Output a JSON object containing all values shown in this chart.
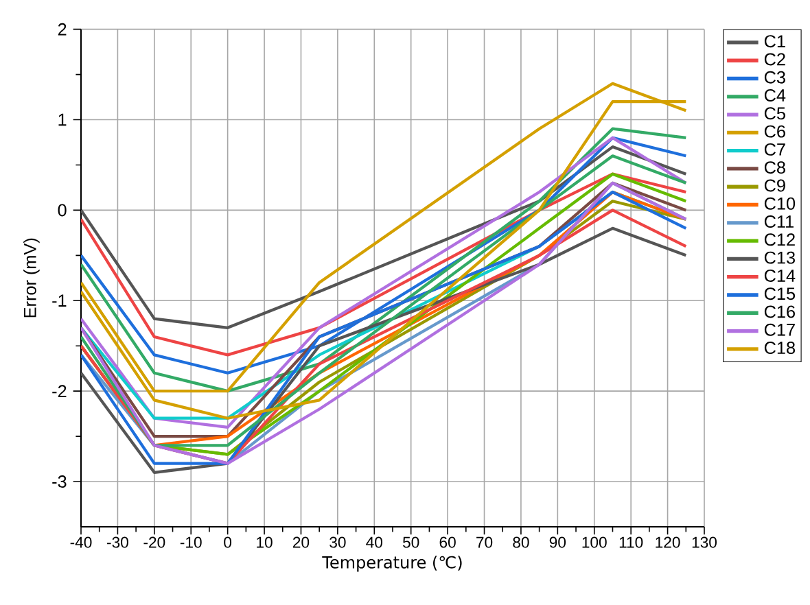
{
  "chart_data": {
    "type": "line",
    "xlabel": "Temperature (℃)",
    "ylabel": "Error (mV)",
    "x": [
      -40,
      -20,
      0,
      25,
      85,
      105,
      125
    ],
    "xlim": [
      -40,
      130
    ],
    "xticks": [
      -40,
      -30,
      -20,
      -10,
      0,
      10,
      20,
      30,
      40,
      50,
      60,
      70,
      80,
      90,
      100,
      110,
      120,
      130
    ],
    "ylim": [
      -3.5,
      2
    ],
    "yticks": [
      -3,
      -2,
      -1,
      0,
      1,
      2
    ],
    "grid": true,
    "legend": "right",
    "marker": "none",
    "line_style": "solid",
    "series": [
      {
        "name": "C1",
        "color": "#555555",
        "values": [
          0,
          -1.2,
          -1.3,
          -0.9,
          0.1,
          0.7,
          0.4
        ]
      },
      {
        "name": "C2",
        "color": "#ee4444",
        "values": [
          -0.1,
          -1.4,
          -1.6,
          -1.3,
          0.0,
          0.4,
          0.2
        ]
      },
      {
        "name": "C3",
        "color": "#1e6fdc",
        "values": [
          -0.5,
          -1.6,
          -1.8,
          -1.5,
          0.0,
          0.8,
          0.6
        ]
      },
      {
        "name": "C4",
        "color": "#33aa66",
        "values": [
          -0.6,
          -1.8,
          -2.0,
          -1.7,
          0.1,
          0.9,
          0.8
        ]
      },
      {
        "name": "C5",
        "color": "#b070e0",
        "values": [
          -1.2,
          -2.3,
          -2.4,
          -1.3,
          0.2,
          0.8,
          0.3
        ]
      },
      {
        "name": "C6",
        "color": "#d4a000",
        "values": [
          -0.8,
          -2.0,
          -2.0,
          -0.8,
          0.9,
          1.4,
          1.1
        ]
      },
      {
        "name": "C7",
        "color": "#11cccc",
        "values": [
          -1.3,
          -2.3,
          -2.3,
          -1.6,
          -0.4,
          0.2,
          -0.1
        ]
      },
      {
        "name": "C8",
        "color": "#7a4a44",
        "values": [
          -1.3,
          -2.5,
          -2.5,
          -1.4,
          -0.4,
          0.3,
          0.0
        ]
      },
      {
        "name": "C9",
        "color": "#999900",
        "values": [
          -1.5,
          -2.6,
          -2.7,
          -1.9,
          -0.5,
          0.1,
          -0.1
        ]
      },
      {
        "name": "C10",
        "color": "#ff6600",
        "values": [
          -1.5,
          -2.6,
          -2.5,
          -1.8,
          -0.5,
          0.2,
          -0.1
        ]
      },
      {
        "name": "C11",
        "color": "#6699cc",
        "values": [
          -1.6,
          -2.6,
          -2.8,
          -2.0,
          -0.6,
          0.3,
          -0.1
        ]
      },
      {
        "name": "C12",
        "color": "#66bb00",
        "values": [
          -1.5,
          -2.6,
          -2.7,
          -2.0,
          -0.2,
          0.4,
          0.1
        ]
      },
      {
        "name": "C13",
        "color": "#555555",
        "values": [
          -1.8,
          -2.9,
          -2.8,
          -1.5,
          -0.6,
          -0.2,
          -0.5
        ]
      },
      {
        "name": "C14",
        "color": "#ee4444",
        "values": [
          -1.5,
          -2.6,
          -2.8,
          -1.7,
          -0.5,
          0.0,
          -0.4
        ]
      },
      {
        "name": "C15",
        "color": "#1e6fdc",
        "values": [
          -1.6,
          -2.8,
          -2.8,
          -1.4,
          -0.4,
          0.2,
          -0.2
        ]
      },
      {
        "name": "C16",
        "color": "#33aa66",
        "values": [
          -1.4,
          -2.6,
          -2.6,
          -1.8,
          0.0,
          0.6,
          0.3
        ]
      },
      {
        "name": "C17",
        "color": "#b070e0",
        "values": [
          -1.3,
          -2.6,
          -2.8,
          -2.2,
          -0.6,
          0.3,
          -0.1
        ]
      },
      {
        "name": "C18",
        "color": "#d4a000",
        "values": [
          -0.9,
          -2.1,
          -2.3,
          -2.1,
          0.0,
          1.2,
          1.2
        ]
      }
    ]
  }
}
